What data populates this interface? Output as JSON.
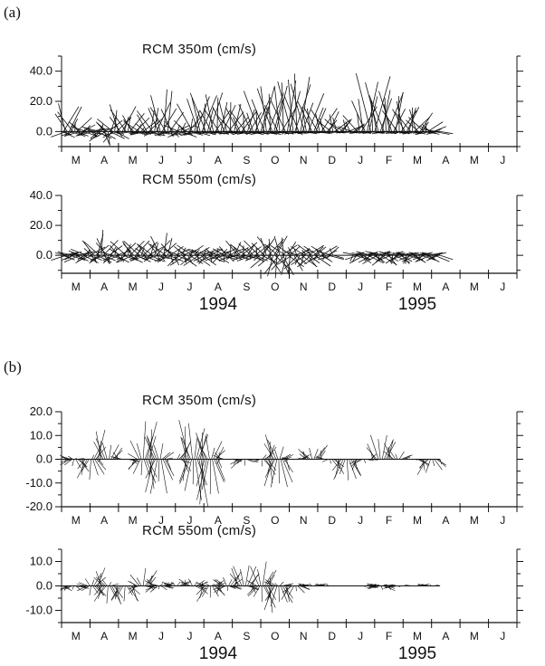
{
  "panels": [
    {
      "tag": "(a)",
      "type": "progressive-vector"
    },
    {
      "tag": "(b)",
      "type": "filtered-vector"
    }
  ],
  "month_labels": [
    "M",
    "A",
    "M",
    "J",
    "J",
    "A",
    "S",
    "O",
    "N",
    "D",
    "J",
    "F",
    "M",
    "A",
    "M",
    "J"
  ],
  "year_labels": [
    "1994",
    "1995"
  ],
  "chart_data": [
    {
      "type": "stick-vector",
      "panel": "(a)",
      "title": "RCM 350m (cm/s)",
      "ylim": [
        -10,
        50
      ],
      "yticks": [
        0,
        20,
        40
      ],
      "ytick_labels": [
        "0.0",
        "20.0",
        "40.0"
      ],
      "xlim": [
        0,
        16
      ],
      "x_unit": "month index (Mar 1994 = 0)",
      "data_end": 13.3,
      "envelope_top": [
        [
          0.0,
          25
        ],
        [
          0.5,
          10
        ],
        [
          1.0,
          2
        ],
        [
          1.5,
          6
        ],
        [
          2.0,
          18
        ],
        [
          2.4,
          15
        ],
        [
          2.8,
          5
        ],
        [
          3.3,
          22
        ],
        [
          3.7,
          30
        ],
        [
          4.0,
          5
        ],
        [
          4.4,
          8
        ],
        [
          4.8,
          30
        ],
        [
          5.3,
          25
        ],
        [
          5.8,
          22
        ],
        [
          6.3,
          15
        ],
        [
          6.7,
          20
        ],
        [
          7.2,
          35
        ],
        [
          7.7,
          30
        ],
        [
          8.2,
          45
        ],
        [
          8.7,
          25
        ],
        [
          9.2,
          15
        ],
        [
          9.8,
          10
        ],
        [
          10.3,
          5
        ],
        [
          10.8,
          40
        ],
        [
          11.3,
          32
        ],
        [
          11.8,
          25
        ],
        [
          12.3,
          18
        ],
        [
          13.0,
          5
        ],
        [
          13.3,
          0
        ]
      ],
      "envelope_bottom": [
        [
          0.0,
          -4
        ],
        [
          1.0,
          -3
        ],
        [
          1.6,
          -10
        ],
        [
          2.2,
          -1
        ],
        [
          3.2,
          -3
        ],
        [
          4.2,
          -4
        ],
        [
          5.0,
          -2
        ],
        [
          7.0,
          -2
        ],
        [
          8.0,
          -2
        ],
        [
          9.5,
          -1
        ],
        [
          13.2,
          -2
        ]
      ]
    },
    {
      "type": "stick-vector",
      "panel": "(a)",
      "title": "RCM 550m (cm/s)",
      "ylim": [
        -12,
        40
      ],
      "yticks": [
        0,
        20,
        40
      ],
      "ytick_labels": [
        "0.0",
        "20.0",
        "40.0"
      ],
      "xlim": [
        0,
        16
      ],
      "data_end": 13.3,
      "gaps": [
        [
          9.6,
          10.2
        ]
      ],
      "envelope_top": [
        [
          0.0,
          3
        ],
        [
          0.5,
          2
        ],
        [
          1.0,
          6
        ],
        [
          1.4,
          18
        ],
        [
          1.8,
          4
        ],
        [
          2.4,
          12
        ],
        [
          3.0,
          8
        ],
        [
          3.6,
          15
        ],
        [
          4.0,
          5
        ],
        [
          4.6,
          7
        ],
        [
          5.0,
          4
        ],
        [
          5.6,
          5
        ],
        [
          6.2,
          10
        ],
        [
          6.8,
          8
        ],
        [
          7.3,
          15
        ],
        [
          7.8,
          12
        ],
        [
          8.3,
          4
        ],
        [
          8.8,
          8
        ],
        [
          9.3,
          6
        ],
        [
          10.3,
          2
        ],
        [
          11.2,
          3
        ],
        [
          12.5,
          2
        ],
        [
          13.2,
          2
        ]
      ],
      "envelope_bottom": [
        [
          0.0,
          -3
        ],
        [
          0.7,
          -5
        ],
        [
          1.3,
          -6
        ],
        [
          2.3,
          -5
        ],
        [
          3.3,
          -4
        ],
        [
          4.3,
          -8
        ],
        [
          5.3,
          -6
        ],
        [
          6.3,
          -3
        ],
        [
          7.0,
          -5
        ],
        [
          7.6,
          -18
        ],
        [
          8.2,
          -10
        ],
        [
          8.8,
          -8
        ],
        [
          9.4,
          -3
        ],
        [
          10.4,
          -5
        ],
        [
          11.5,
          -7
        ],
        [
          12.5,
          -5
        ],
        [
          13.3,
          -4
        ]
      ]
    },
    {
      "type": "stick-vector",
      "panel": "(b)",
      "title": "RCM 350m (cm/s)",
      "ylim": [
        -20,
        20
      ],
      "yticks": [
        -20,
        -10,
        0,
        10,
        20
      ],
      "ytick_labels": [
        "-20.0",
        "-10.0",
        "0.0",
        "10.0",
        "20.0"
      ],
      "xlim": [
        0,
        16
      ],
      "data_end": 13.3,
      "envelope_top": [
        [
          0.0,
          0
        ],
        [
          0.3,
          2
        ],
        [
          0.6,
          0
        ],
        [
          1.0,
          0
        ],
        [
          1.3,
          14
        ],
        [
          1.8,
          6
        ],
        [
          2.2,
          0
        ],
        [
          2.6,
          0
        ],
        [
          2.9,
          18
        ],
        [
          3.3,
          12
        ],
        [
          3.7,
          0
        ],
        [
          4.0,
          0
        ],
        [
          4.4,
          17
        ],
        [
          5.0,
          13
        ],
        [
          5.5,
          5
        ],
        [
          5.8,
          0
        ],
        [
          7.0,
          0
        ],
        [
          7.4,
          12
        ],
        [
          7.8,
          2
        ],
        [
          8.2,
          0
        ],
        [
          8.6,
          4
        ],
        [
          9.0,
          7
        ],
        [
          9.3,
          0
        ],
        [
          10.8,
          0
        ],
        [
          11.2,
          13
        ],
        [
          11.8,
          4
        ],
        [
          12.2,
          0
        ],
        [
          13.3,
          0
        ]
      ],
      "envelope_bottom": [
        [
          0.0,
          0
        ],
        [
          0.2,
          -2
        ],
        [
          0.7,
          -6
        ],
        [
          1.1,
          -10
        ],
        [
          1.4,
          0
        ],
        [
          2.2,
          0
        ],
        [
          2.5,
          -2
        ],
        [
          3.0,
          -12
        ],
        [
          3.5,
          -16
        ],
        [
          3.8,
          0
        ],
        [
          4.1,
          0
        ],
        [
          4.4,
          -12
        ],
        [
          4.8,
          -20
        ],
        [
          5.3,
          -18
        ],
        [
          5.6,
          0
        ],
        [
          5.9,
          0
        ],
        [
          6.3,
          -4
        ],
        [
          6.7,
          0
        ],
        [
          6.9,
          0
        ],
        [
          7.3,
          -10
        ],
        [
          7.7,
          -15
        ],
        [
          8.0,
          0
        ],
        [
          9.3,
          0
        ],
        [
          9.6,
          -6
        ],
        [
          10.1,
          -11
        ],
        [
          10.4,
          -4
        ],
        [
          10.8,
          0
        ],
        [
          12.4,
          0
        ],
        [
          12.8,
          -7
        ],
        [
          13.3,
          -3
        ]
      ]
    },
    {
      "type": "stick-vector",
      "panel": "(b)",
      "title": "RCM 550m (cm/s)",
      "ylim": [
        -15,
        15
      ],
      "yticks": [
        -10,
        0,
        10
      ],
      "ytick_labels": [
        "-10.0",
        "0.0",
        "10.0"
      ],
      "xlim": [
        0,
        16
      ],
      "data_end": 13.3,
      "gaps": [
        [
          9.8,
          10.2
        ]
      ],
      "envelope_top": [
        [
          0.0,
          0
        ],
        [
          0.8,
          0
        ],
        [
          1.3,
          8
        ],
        [
          1.8,
          0
        ],
        [
          2.5,
          0
        ],
        [
          2.9,
          8
        ],
        [
          3.4,
          1
        ],
        [
          4.0,
          2
        ],
        [
          4.6,
          3
        ],
        [
          5.2,
          1
        ],
        [
          6.0,
          5
        ],
        [
          6.5,
          11
        ],
        [
          6.8,
          0
        ],
        [
          7.0,
          12
        ],
        [
          7.4,
          3
        ],
        [
          8.0,
          0
        ],
        [
          8.6,
          1
        ],
        [
          9.2,
          1
        ],
        [
          9.6,
          0
        ],
        [
          10.4,
          0
        ],
        [
          11.0,
          1
        ],
        [
          12.0,
          0
        ],
        [
          12.8,
          1
        ],
        [
          13.3,
          0
        ]
      ],
      "envelope_bottom": [
        [
          0.0,
          -2
        ],
        [
          0.5,
          -2
        ],
        [
          0.8,
          0
        ],
        [
          1.0,
          -4
        ],
        [
          1.8,
          -8
        ],
        [
          2.5,
          -6
        ],
        [
          2.8,
          0
        ],
        [
          3.3,
          -3
        ],
        [
          3.8,
          0
        ],
        [
          4.6,
          0
        ],
        [
          5.1,
          -7
        ],
        [
          5.6,
          -3
        ],
        [
          6.4,
          0
        ],
        [
          6.8,
          -4
        ],
        [
          7.3,
          -11
        ],
        [
          7.8,
          -8
        ],
        [
          8.2,
          -4
        ],
        [
          8.6,
          0
        ],
        [
          10.0,
          0
        ],
        [
          10.4,
          0
        ],
        [
          11.4,
          -2
        ],
        [
          12.0,
          0
        ],
        [
          13.3,
          0
        ]
      ]
    }
  ]
}
